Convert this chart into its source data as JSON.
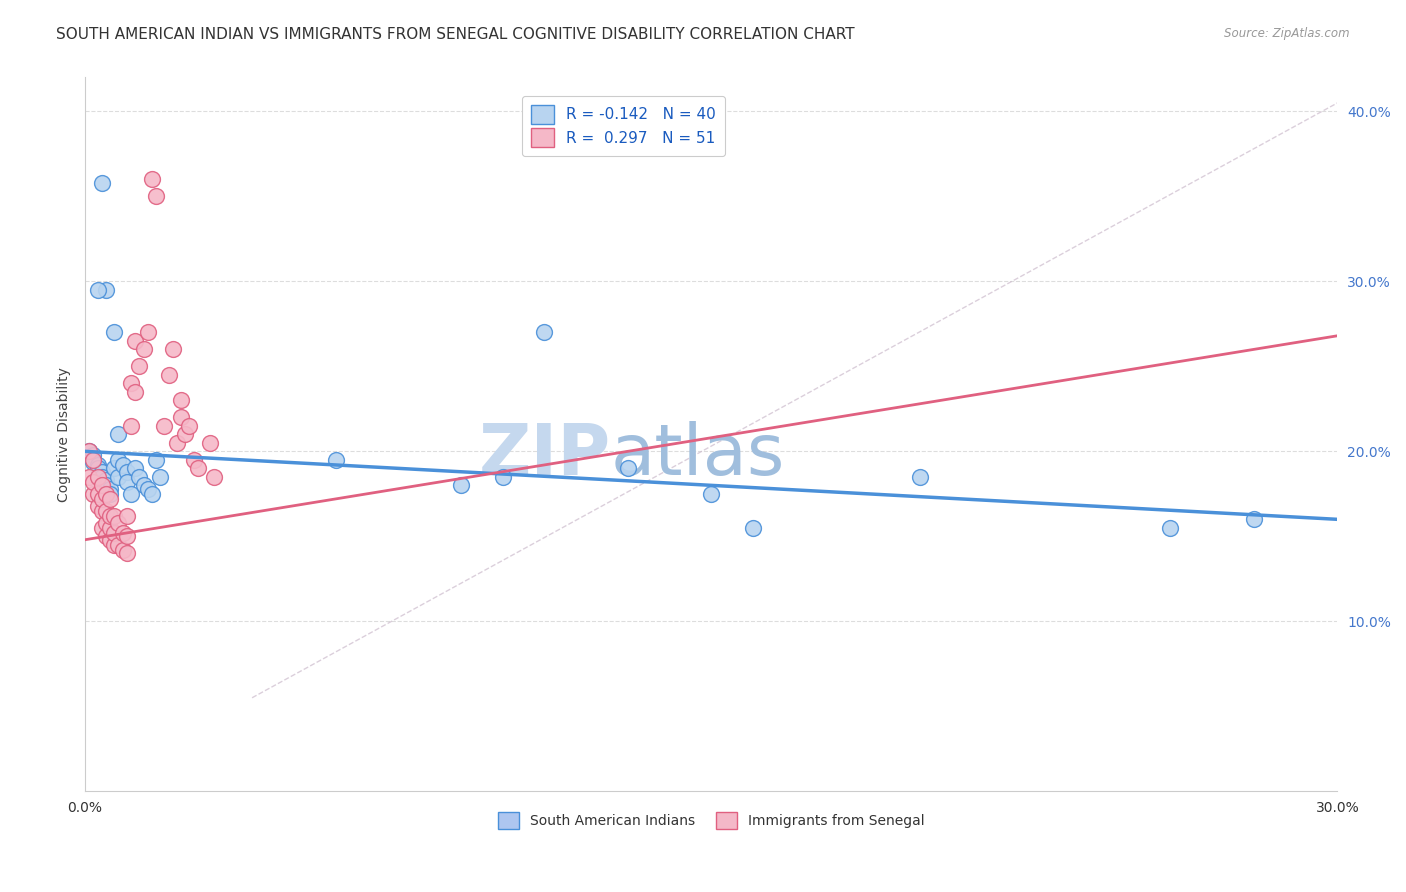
{
  "title": "SOUTH AMERICAN INDIAN VS IMMIGRANTS FROM SENEGAL COGNITIVE DISABILITY CORRELATION CHART",
  "source": "Source: ZipAtlas.com",
  "ylabel": "Cognitive Disability",
  "xlim": [
    0.0,
    0.3
  ],
  "ylim": [
    0.0,
    0.42
  ],
  "x_tick_positions": [
    0.0,
    0.05,
    0.1,
    0.15,
    0.2,
    0.25,
    0.3
  ],
  "x_tick_labels": [
    "0.0%",
    "",
    "",
    "",
    "",
    "",
    "30.0%"
  ],
  "y_tick_positions_right": [
    0.1,
    0.2,
    0.3,
    0.4
  ],
  "y_tick_labels_right": [
    "10.0%",
    "20.0%",
    "30.0%",
    "40.0%"
  ],
  "legend_labels_top": [
    "R = -0.142   N = 40",
    "R =  0.297   N = 51"
  ],
  "legend_labels_bottom": [
    "South American Indians",
    "Immigrants from Senegal"
  ],
  "legend_colors_bottom": [
    "#aec6f0",
    "#f4b8c8"
  ],
  "watermark": "ZIPatlas",
  "blue_scatter_x": [
    0.004,
    0.005,
    0.007,
    0.008,
    0.001,
    0.002,
    0.002,
    0.003,
    0.003,
    0.004,
    0.004,
    0.005,
    0.005,
    0.006,
    0.006,
    0.007,
    0.008,
    0.008,
    0.009,
    0.01,
    0.01,
    0.011,
    0.012,
    0.013,
    0.014,
    0.015,
    0.016,
    0.017,
    0.018,
    0.003,
    0.06,
    0.09,
    0.1,
    0.11,
    0.13,
    0.15,
    0.16,
    0.2,
    0.26,
    0.28
  ],
  "blue_scatter_y": [
    0.358,
    0.295,
    0.27,
    0.21,
    0.2,
    0.198,
    0.194,
    0.192,
    0.19,
    0.188,
    0.185,
    0.183,
    0.18,
    0.178,
    0.175,
    0.19,
    0.195,
    0.185,
    0.192,
    0.188,
    0.182,
    0.175,
    0.19,
    0.185,
    0.18,
    0.178,
    0.175,
    0.195,
    0.185,
    0.295,
    0.195,
    0.18,
    0.185,
    0.27,
    0.19,
    0.175,
    0.155,
    0.185,
    0.155,
    0.16
  ],
  "pink_scatter_x": [
    0.001,
    0.001,
    0.002,
    0.002,
    0.002,
    0.003,
    0.003,
    0.003,
    0.004,
    0.004,
    0.004,
    0.004,
    0.005,
    0.005,
    0.005,
    0.005,
    0.006,
    0.006,
    0.006,
    0.006,
    0.007,
    0.007,
    0.007,
    0.008,
    0.008,
    0.009,
    0.009,
    0.01,
    0.01,
    0.01,
    0.011,
    0.011,
    0.012,
    0.012,
    0.013,
    0.014,
    0.015,
    0.016,
    0.017,
    0.019,
    0.02,
    0.021,
    0.022,
    0.023,
    0.023,
    0.024,
    0.025,
    0.026,
    0.027,
    0.03,
    0.031
  ],
  "pink_scatter_y": [
    0.2,
    0.185,
    0.175,
    0.182,
    0.195,
    0.168,
    0.175,
    0.185,
    0.155,
    0.165,
    0.172,
    0.18,
    0.15,
    0.158,
    0.165,
    0.175,
    0.148,
    0.155,
    0.162,
    0.172,
    0.145,
    0.152,
    0.162,
    0.145,
    0.158,
    0.142,
    0.152,
    0.14,
    0.15,
    0.162,
    0.24,
    0.215,
    0.235,
    0.265,
    0.25,
    0.26,
    0.27,
    0.36,
    0.35,
    0.215,
    0.245,
    0.26,
    0.205,
    0.22,
    0.23,
    0.21,
    0.215,
    0.195,
    0.19,
    0.205,
    0.185
  ],
  "blue_line_x": [
    0.0,
    0.3
  ],
  "blue_line_y": [
    0.2,
    0.16
  ],
  "pink_line_x": [
    0.0,
    0.3
  ],
  "pink_line_y": [
    0.148,
    0.268
  ],
  "diag_line_x": [
    0.04,
    0.3
  ],
  "diag_line_y": [
    0.055,
    0.405
  ],
  "blue_color": "#4a90d9",
  "blue_fill": "#b8d4f0",
  "pink_color": "#e06080",
  "pink_fill": "#f5b8c8",
  "title_fontsize": 11,
  "axis_label_fontsize": 10,
  "tick_fontsize": 10,
  "watermark_color": "#c8d8f0",
  "watermark_fontsize": 52,
  "background_color": "#ffffff",
  "grid_color": "#dddddd"
}
